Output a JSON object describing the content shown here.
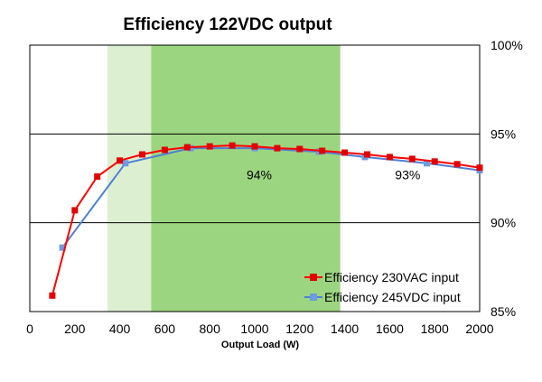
{
  "chart_data": {
    "type": "line",
    "title": "Efficiency 122VDC output",
    "xlabel": "Output Load (W)",
    "ylabel": "",
    "xlim": [
      0,
      2000
    ],
    "ylim": [
      85,
      100
    ],
    "x_ticks": [
      "0",
      "200",
      "400",
      "600",
      "800",
      "1000",
      "1200",
      "1400",
      "1600",
      "1800",
      "2000"
    ],
    "y_ticks": [
      "85%",
      "90%",
      "95%",
      "100%"
    ],
    "grid": "horizontal",
    "legend_position": "bottom-right",
    "zones": [
      {
        "x_start": 345,
        "x_end": 1380,
        "label": "93%",
        "label_x": 1680,
        "label_y": 92.7,
        "color": "#dcefd0"
      },
      {
        "x_start": 540,
        "x_end": 1380,
        "label": "94%",
        "label_x": 1020,
        "label_y": 92.7,
        "color": "#9cd580"
      }
    ],
    "series": [
      {
        "name": "Efficiency 230VAC input",
        "color": "#ff0000",
        "marker_color": "#e00000",
        "x": [
          100,
          200,
          300,
          400,
          500,
          600,
          700,
          800,
          900,
          1000,
          1100,
          1200,
          1300,
          1400,
          1500,
          1600,
          1700,
          1800,
          1900,
          2000
        ],
        "y": [
          85.9,
          90.7,
          92.6,
          93.5,
          93.85,
          94.1,
          94.25,
          94.3,
          94.35,
          94.3,
          94.2,
          94.15,
          94.05,
          93.95,
          93.85,
          93.7,
          93.6,
          93.45,
          93.3,
          93.1
        ]
      },
      {
        "name": "Efficiency 245VDC input",
        "color": "#4f81d4",
        "marker_color": "#6b9be0",
        "x": [
          145,
          425,
          715,
          1000,
          1285,
          1490,
          1765,
          2000
        ],
        "y": [
          88.6,
          93.35,
          94.2,
          94.2,
          94.0,
          93.7,
          93.35,
          92.95
        ]
      }
    ]
  }
}
